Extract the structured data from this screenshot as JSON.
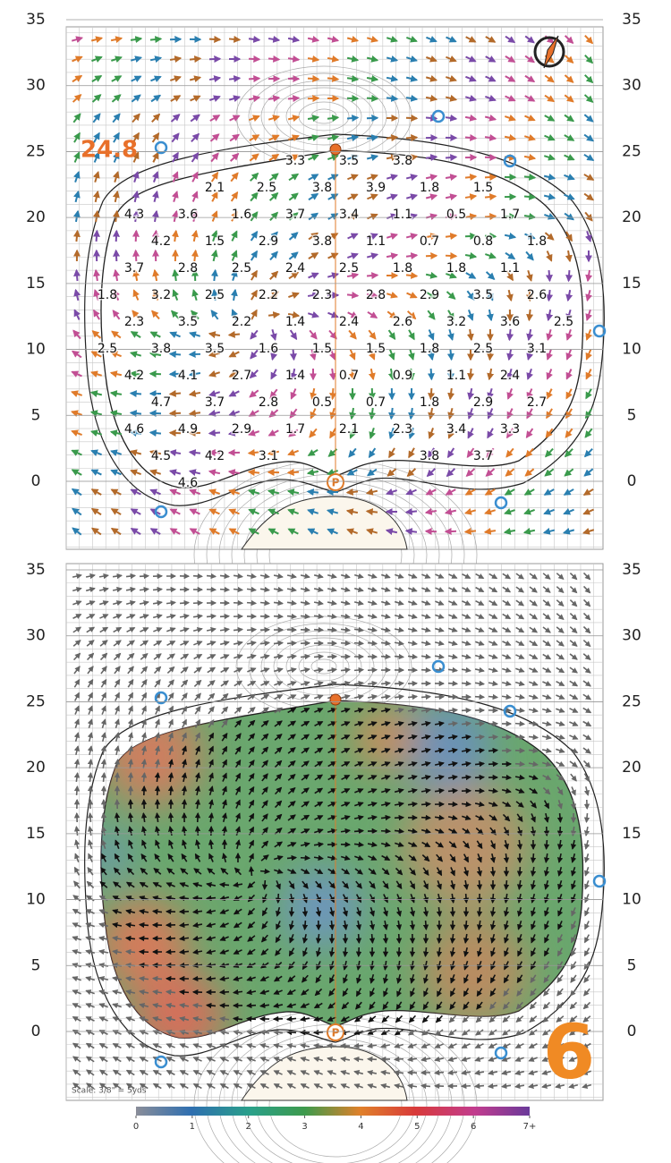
{
  "top_panel": {
    "axis_labels": [
      35,
      30,
      25,
      20,
      15,
      10,
      5,
      0
    ],
    "front_distance": "24.8",
    "slope_rows": [
      [
        3.3,
        3.5,
        3.8
      ],
      [
        2.1,
        2.5,
        3.8,
        3.9,
        1.8,
        1.5
      ],
      [
        4.3,
        3.6,
        1.6,
        3.7,
        3.4,
        1.1,
        0.5,
        1.7
      ],
      [
        4.2,
        1.5,
        2.9,
        3.8,
        1.1,
        0.7,
        0.8,
        1.8
      ],
      [
        3.7,
        2.8,
        2.5,
        2.4,
        2.5,
        1.8,
        1.8,
        1.1
      ],
      [
        1.8,
        3.2,
        2.5,
        2.2,
        2.3,
        2.8,
        2.9,
        3.5,
        2.6
      ],
      [
        2.3,
        3.5,
        2.2,
        1.4,
        2.4,
        2.6,
        3.2,
        3.6,
        2.5
      ],
      [
        2.5,
        3.8,
        3.5,
        1.6,
        1.5,
        1.5,
        1.8,
        2.5,
        3.1
      ],
      [
        4.2,
        4.1,
        2.7,
        1.4,
        0.7,
        0.9,
        1.1,
        2.4
      ],
      [
        4.7,
        3.7,
        2.8,
        0.5,
        0.7,
        1.8,
        2.9,
        2.7
      ],
      [
        4.6,
        4.9,
        2.9,
        1.7,
        2.1,
        2.3,
        3.4,
        3.3
      ],
      [
        4.5,
        4.2,
        3.1,
        3.8,
        3.7
      ],
      [
        4.6
      ]
    ]
  },
  "bottom_panel": {
    "axis_labels": [
      35,
      30,
      25,
      20,
      15,
      10,
      5,
      0
    ],
    "hole_number": "6",
    "scale_note": "Scale: 3/8\" = 5yds"
  },
  "legend": {
    "ticks": [
      0,
      1,
      2,
      3,
      4,
      5,
      6,
      {
        "value": 7,
        "label": "7+"
      }
    ]
  }
}
